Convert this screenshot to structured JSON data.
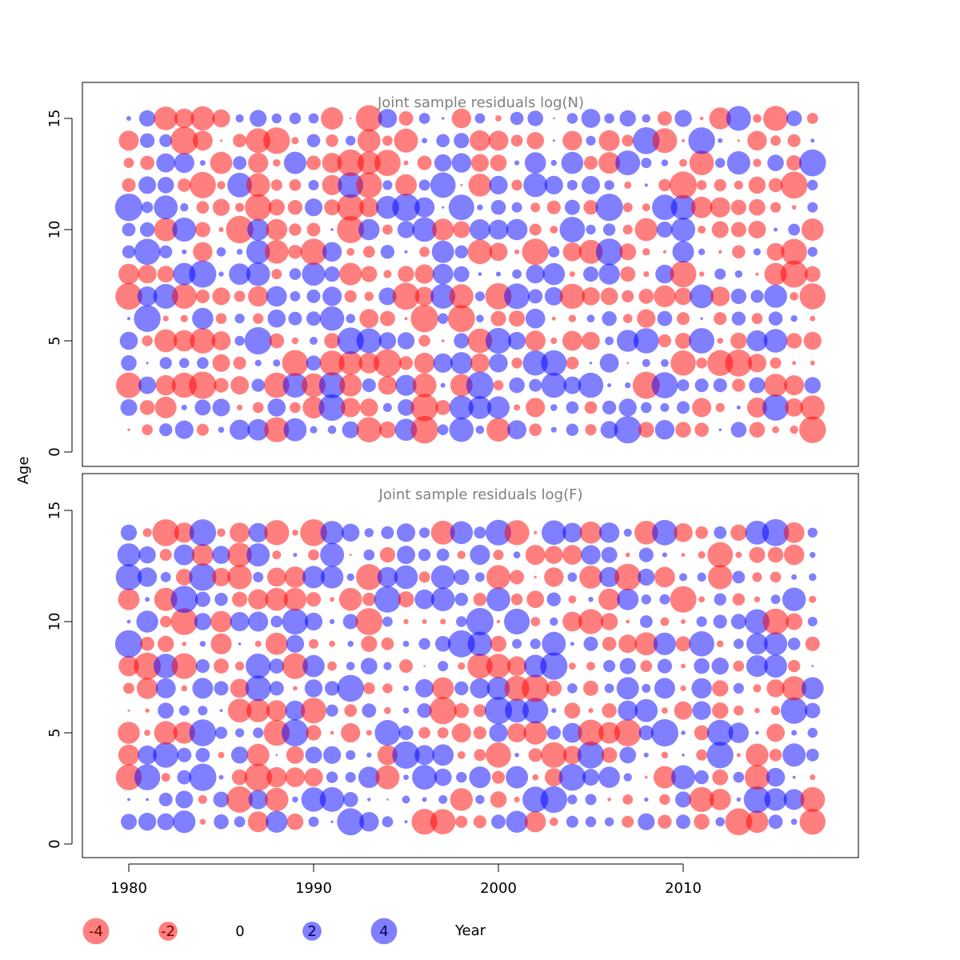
{
  "chart_data": [
    {
      "type": "scatter",
      "title": "Joint sample residuals log(N)",
      "xlabel": "Year",
      "ylabel": "Age",
      "xlim": [
        1977.5,
        2019
      ],
      "ylim": [
        -0.6,
        16.6
      ],
      "x_ticks": [
        1980,
        1990,
        2000,
        2010
      ],
      "y_ticks": [
        0,
        5,
        10,
        15
      ],
      "years": [
        1980,
        2017
      ],
      "ages": [
        1,
        15
      ],
      "bubble_encoding": "area proportional to |residual|; red = negative, blue = positive",
      "colors": {
        "negative": "#ff0000",
        "positive": "#0000ff"
      }
    },
    {
      "type": "scatter",
      "title": "Joint sample residuals log(F)",
      "xlabel": "Year",
      "ylabel": "Age",
      "xlim": [
        1977.5,
        2019
      ],
      "ylim": [
        -0.6,
        16.6
      ],
      "x_ticks": [
        1980,
        1990,
        2000,
        2010
      ],
      "y_ticks": [
        0,
        5,
        10,
        15
      ],
      "years": [
        1980,
        2017
      ],
      "ages": [
        1,
        14
      ],
      "bubble_encoding": "area proportional to |residual|; red = negative, blue = positive",
      "colors": {
        "negative": "#ff0000",
        "positive": "#0000ff"
      }
    }
  ],
  "labels": {
    "panel1_title": "Joint sample residuals log(N)",
    "panel2_title": "Joint sample residuals log(F)",
    "y_axis": "Age",
    "x_axis": "Year",
    "x_ticks": [
      "1980",
      "1990",
      "2000",
      "2010"
    ],
    "y_ticks": [
      "0",
      "5",
      "10",
      "15"
    ]
  },
  "legend": [
    {
      "label": "-4",
      "value": -4
    },
    {
      "label": "-2",
      "value": -2
    },
    {
      "label": "0",
      "value": 0
    },
    {
      "label": "2",
      "value": 2
    },
    {
      "label": "4",
      "value": 4
    }
  ]
}
